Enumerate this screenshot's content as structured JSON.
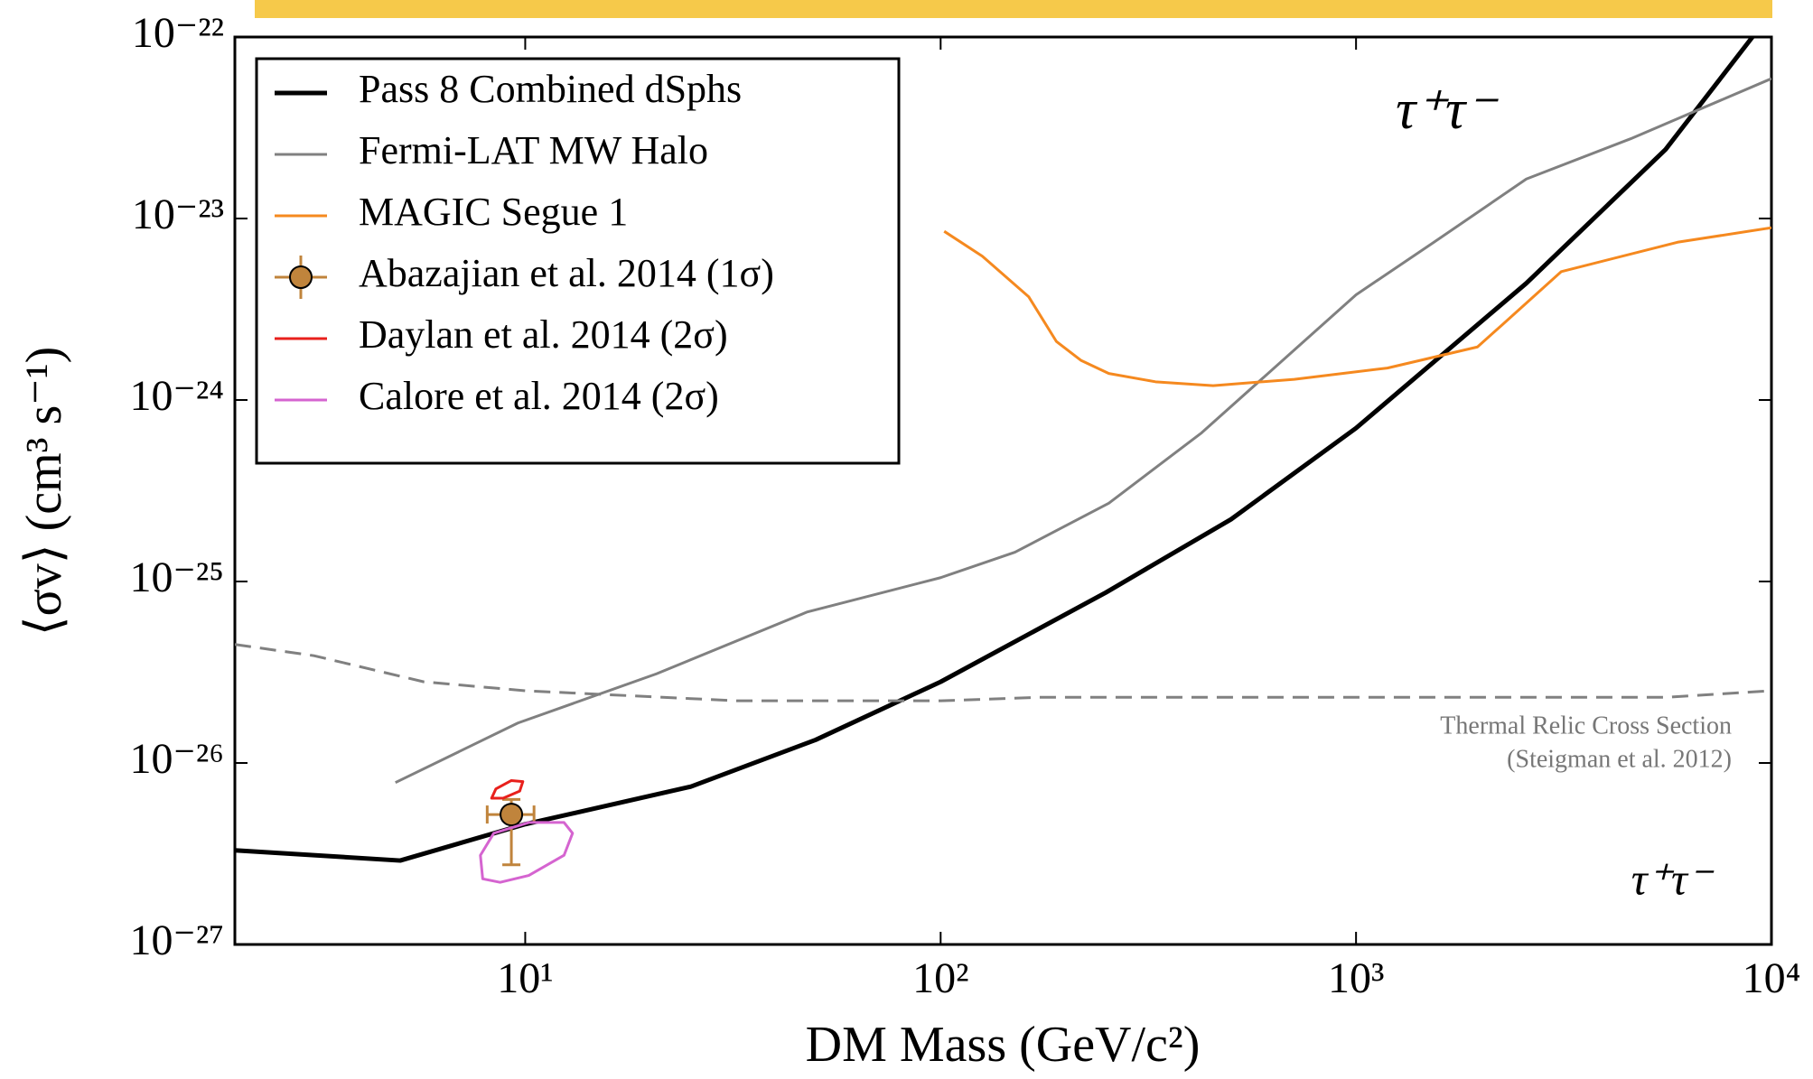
{
  "chart_data": {
    "type": "line",
    "xlabel": "DM Mass (GeV/c²)",
    "ylabel": "⟨σv⟩ (cm³ s⁻¹)",
    "xscale": "log",
    "yscale": "log",
    "xlim": [
      2,
      10000
    ],
    "ylim": [
      1e-27,
      1e-22
    ],
    "xticks": [
      {
        "value": 10,
        "label": "10¹"
      },
      {
        "value": 100,
        "label": "10²"
      },
      {
        "value": 1000,
        "label": "10³"
      },
      {
        "value": 10000,
        "label": "10⁴"
      }
    ],
    "yticks": [
      {
        "value": 1e-27,
        "label": "10⁻²⁷"
      },
      {
        "value": 1e-26,
        "label": "10⁻²⁶"
      },
      {
        "value": 1e-25,
        "label": "10⁻²⁵"
      },
      {
        "value": 1e-24,
        "label": "10⁻²⁴"
      },
      {
        "value": 1e-23,
        "label": "10⁻²³"
      },
      {
        "value": 1e-22,
        "label": "10⁻²²"
      }
    ],
    "legend": "upper left",
    "series": [
      {
        "name": "Pass 8 Combined dSphs",
        "type": "line",
        "color": "#000000",
        "width": 5,
        "x": [
          2,
          5,
          10,
          25,
          50,
          100,
          250,
          500,
          1000,
          2570,
          5560,
          9000
        ],
        "values": [
          3.3e-27,
          2.9e-27,
          4.6e-27,
          7.4e-27,
          1.34e-26,
          2.8e-26,
          8.7e-26,
          2.2e-25,
          7e-25,
          4.4e-24,
          2.4e-23,
          1e-22
        ]
      },
      {
        "name": "Fermi-LAT MW Halo",
        "type": "line",
        "color": "#808080",
        "width": 3,
        "x": [
          4.87,
          9.6,
          20.7,
          47.8,
          100,
          151,
          254,
          425,
          1000,
          1540,
          2570,
          4580,
          10000
        ],
        "values": [
          7.8e-27,
          1.66e-26,
          3.1e-26,
          6.8e-26,
          1.05e-25,
          1.45e-25,
          2.7e-25,
          6.6e-25,
          3.8e-24,
          7.4e-24,
          1.65e-23,
          2.75e-23,
          5.9e-23
        ]
      },
      {
        "name": "MAGIC Segue 1",
        "type": "line",
        "color": "#f5891f",
        "width": 3,
        "x": [
          102,
          126,
          163,
          190,
          218,
          254,
          329,
          453,
          710,
          1190,
          1960,
          2250,
          3120,
          5940,
          10000
        ],
        "values": [
          8.5e-24,
          6.2e-24,
          3.7e-24,
          2.1e-24,
          1.65e-24,
          1.4e-24,
          1.26e-24,
          1.2e-24,
          1.3e-24,
          1.5e-24,
          1.96e-24,
          2.6e-24,
          5.1e-24,
          7.4e-24,
          8.9e-24
        ]
      },
      {
        "name": "Abazajian et al. 2014 (1σ)",
        "type": "errorpoint",
        "color": "#c0843c",
        "x": [
          9.26
        ],
        "values": [
          5.2e-27
        ],
        "xlow": [
          8.1
        ],
        "xhigh": [
          10.5
        ],
        "ylow": [
          2.75e-27
        ],
        "yhigh": [
          6.3e-27
        ]
      },
      {
        "name": "Daylan et al. 2014 (2σ)",
        "type": "contour",
        "color": "#e8201c",
        "width": 3,
        "x": [
          8.3,
          8.5,
          9.26,
          9.87,
          9.7,
          8.85
        ],
        "values": [
          6.4e-27,
          7.2e-27,
          8e-27,
          7.9e-27,
          7e-27,
          6.4e-27
        ]
      },
      {
        "name": "Calore et al. 2014 (2σ)",
        "type": "contour",
        "color": "#d564d0",
        "width": 3,
        "x": [
          7.9,
          7.8,
          8.4,
          10.2,
          12.4,
          13,
          12.4,
          10.2,
          8.7
        ],
        "values": [
          2.3e-27,
          3.1e-27,
          4.1e-27,
          4.7e-27,
          4.7e-27,
          4.1e-27,
          3.1e-27,
          2.4e-27,
          2.2e-27
        ]
      },
      {
        "type": "line",
        "color": "#808080",
        "width": 3,
        "dash": true,
        "x": [
          2,
          3.1,
          5.7,
          10,
          32.5,
          100,
          173,
          5560,
          10000
        ],
        "values": [
          4.5e-26,
          3.9e-26,
          2.8e-26,
          2.5e-26,
          2.2e-26,
          2.2e-26,
          2.3e-26,
          2.3e-26,
          2.5e-26
        ]
      }
    ],
    "annotations": [
      "τ⁺τ⁻",
      "τ⁺τ⁻",
      "Thermal Relic Cross Section",
      "(Steigman et al. 2012)"
    ]
  }
}
